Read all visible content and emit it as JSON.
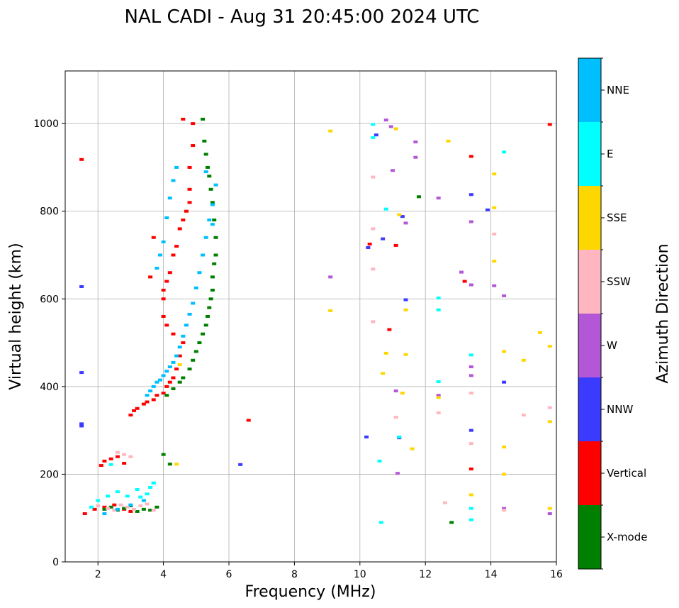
{
  "chart_data": {
    "type": "scatter",
    "title": "NAL CADI - Aug 31 20:45:00 2024 UTC",
    "xlabel": "Frequency (MHz)",
    "ylabel": "Virtual height (km)",
    "xlim": [
      1,
      16
    ],
    "ylim": [
      0,
      1120
    ],
    "xticks": [
      2,
      4,
      6,
      8,
      10,
      12,
      14,
      16
    ],
    "yticks": [
      0,
      200,
      400,
      600,
      800,
      1000
    ],
    "grid": true,
    "colorbar": {
      "label": "Azimuth Direction",
      "categories": [
        {
          "name": "X-mode",
          "color": "#008000"
        },
        {
          "name": "Vertical",
          "color": "#ff0000"
        },
        {
          "name": "NNW",
          "color": "#3b3bff"
        },
        {
          "name": "W",
          "color": "#b457d6"
        },
        {
          "name": "SSW",
          "color": "#ffb6c1"
        },
        {
          "name": "SSE",
          "color": "#ffd700"
        },
        {
          "name": "E",
          "color": "#00ffff"
        },
        {
          "name": "NNE",
          "color": "#00bfff"
        }
      ]
    },
    "series": [
      {
        "name": "Vertical",
        "x": [
          1.5,
          1.6,
          1.9,
          2.1,
          2.2,
          2.4,
          2.6,
          2.8,
          3.0,
          3.1,
          3.2,
          3.4,
          3.5,
          3.7,
          3.8,
          4.0,
          4.1,
          4.2,
          4.3,
          4.4,
          4.5,
          4.6,
          4.3,
          4.1,
          4.0,
          4.0,
          4.0,
          4.1,
          4.2,
          4.3,
          4.4,
          4.5,
          4.6,
          4.7,
          4.8,
          4.8,
          4.8,
          4.9,
          4.9,
          4.6,
          3.6,
          3.7,
          2.2,
          2.5,
          2.8,
          3.0,
          6.6,
          10.3,
          10.9,
          11.1,
          13.4,
          13.4,
          13.2,
          15.8
        ],
        "y": [
          918,
          110,
          120,
          220,
          230,
          235,
          240,
          225,
          335,
          345,
          350,
          360,
          365,
          370,
          380,
          385,
          400,
          410,
          420,
          440,
          470,
          500,
          520,
          540,
          560,
          600,
          620,
          640,
          660,
          700,
          720,
          760,
          780,
          800,
          820,
          850,
          900,
          950,
          1000,
          1010,
          650,
          740,
          125,
          130,
          120,
          115,
          323,
          725,
          530,
          722,
          925,
          212,
          640,
          998
        ]
      },
      {
        "name": "X-mode",
        "x": [
          2.2,
          2.4,
          2.6,
          2.8,
          3.0,
          3.2,
          3.4,
          3.6,
          3.8,
          4.0,
          4.1,
          4.3,
          4.5,
          4.6,
          4.8,
          4.9,
          5.0,
          5.1,
          5.2,
          5.3,
          5.35,
          5.4,
          5.45,
          5.5,
          5.5,
          5.55,
          5.6,
          5.6,
          5.55,
          5.5,
          5.45,
          5.4,
          5.35,
          5.3,
          5.25,
          5.2,
          4.2,
          11.8,
          12.8
        ],
        "y": [
          120,
          125,
          118,
          122,
          128,
          115,
          120,
          118,
          125,
          245,
          380,
          395,
          410,
          420,
          440,
          460,
          480,
          500,
          520,
          540,
          560,
          580,
          600,
          620,
          650,
          680,
          700,
          740,
          780,
          820,
          850,
          880,
          900,
          930,
          960,
          1010,
          223,
          833,
          90
        ]
      },
      {
        "name": "NNW",
        "x": [
          1.5,
          1.5,
          1.5,
          1.5,
          6.35,
          10.2,
          10.25,
          10.5,
          10.7,
          11.2,
          11.3,
          11.4,
          13.4,
          13.4,
          13.9,
          14.4
        ],
        "y": [
          628,
          432,
          315,
          310,
          222,
          285,
          717,
          974,
          737,
          283,
          788,
          598,
          838,
          300,
          803,
          410
        ]
      },
      {
        "name": "W",
        "x": [
          9.1,
          10.8,
          10.95,
          11.0,
          11.1,
          11.15,
          11.4,
          11.7,
          11.7,
          12.4,
          12.4,
          13.1,
          13.4,
          13.4,
          13.4,
          13.4,
          14.1,
          14.4,
          14.4,
          15.8
        ],
        "y": [
          650,
          1008,
          993,
          893,
          390,
          202,
          773,
          958,
          923,
          830,
          380,
          661,
          776,
          632,
          445,
          425,
          630,
          607,
          122,
          110
        ]
      },
      {
        "name": "SSW",
        "x": [
          2.0,
          2.3,
          2.5,
          2.7,
          2.9,
          3.1,
          3.3,
          3.5,
          3.7,
          2.6,
          2.8,
          3.0,
          10.4,
          10.4,
          10.4,
          10.4,
          11.1,
          12.4,
          12.6,
          13.4,
          13.4,
          14.1,
          14.4,
          15.0,
          15.8
        ],
        "y": [
          128,
          122,
          118,
          130,
          125,
          120,
          128,
          132,
          118,
          250,
          245,
          240,
          878,
          760,
          668,
          548,
          330,
          340,
          135,
          385,
          270,
          748,
          118,
          335,
          352
        ]
      },
      {
        "name": "SSE",
        "x": [
          9.1,
          9.1,
          10.7,
          10.8,
          11.1,
          11.2,
          11.3,
          11.4,
          11.4,
          11.6,
          12.4,
          12.7,
          13.4,
          14.1,
          14.1,
          14.1,
          14.4,
          14.4,
          14.4,
          15.0,
          15.5,
          15.8,
          15.8,
          15.8,
          4.4,
          4.5
        ],
        "y": [
          983,
          573,
          430,
          476,
          988,
          792,
          385,
          575,
          473,
          258,
          375,
          960,
          153,
          885,
          808,
          686,
          480,
          262,
          200,
          460,
          523,
          492,
          320,
          122,
          223,
          450
        ]
      },
      {
        "name": "E",
        "x": [
          1.8,
          2.0,
          2.3,
          2.6,
          2.9,
          3.2,
          3.5,
          3.7,
          10.4,
          10.4,
          10.6,
          10.65,
          10.8,
          11.2,
          12.4,
          12.4,
          12.4,
          13.4,
          13.4,
          13.4,
          14.4,
          2.4,
          3.3,
          3.6,
          3.7
        ],
        "y": [
          125,
          140,
          150,
          160,
          150,
          165,
          155,
          180,
          998,
          968,
          230,
          90,
          805,
          285,
          602,
          575,
          411,
          472,
          122,
          96,
          935,
          222,
          148,
          170,
          180
        ]
      },
      {
        "name": "NNE",
        "x": [
          3.5,
          3.6,
          3.7,
          3.8,
          3.9,
          4.0,
          4.1,
          4.2,
          4.3,
          4.4,
          4.5,
          4.6,
          4.7,
          4.8,
          4.9,
          5.0,
          5.1,
          5.2,
          5.3,
          5.4,
          5.5,
          5.6,
          3.8,
          3.9,
          4.0,
          4.1,
          4.2,
          4.3,
          4.4,
          5.3,
          5.5,
          2.2,
          2.6,
          3.0,
          3.4
        ],
        "y": [
          380,
          390,
          400,
          410,
          415,
          425,
          435,
          445,
          455,
          470,
          490,
          515,
          540,
          565,
          590,
          625,
          660,
          700,
          740,
          780,
          815,
          860,
          670,
          700,
          730,
          785,
          830,
          870,
          900,
          890,
          770,
          110,
          120,
          130,
          140
        ]
      }
    ]
  }
}
